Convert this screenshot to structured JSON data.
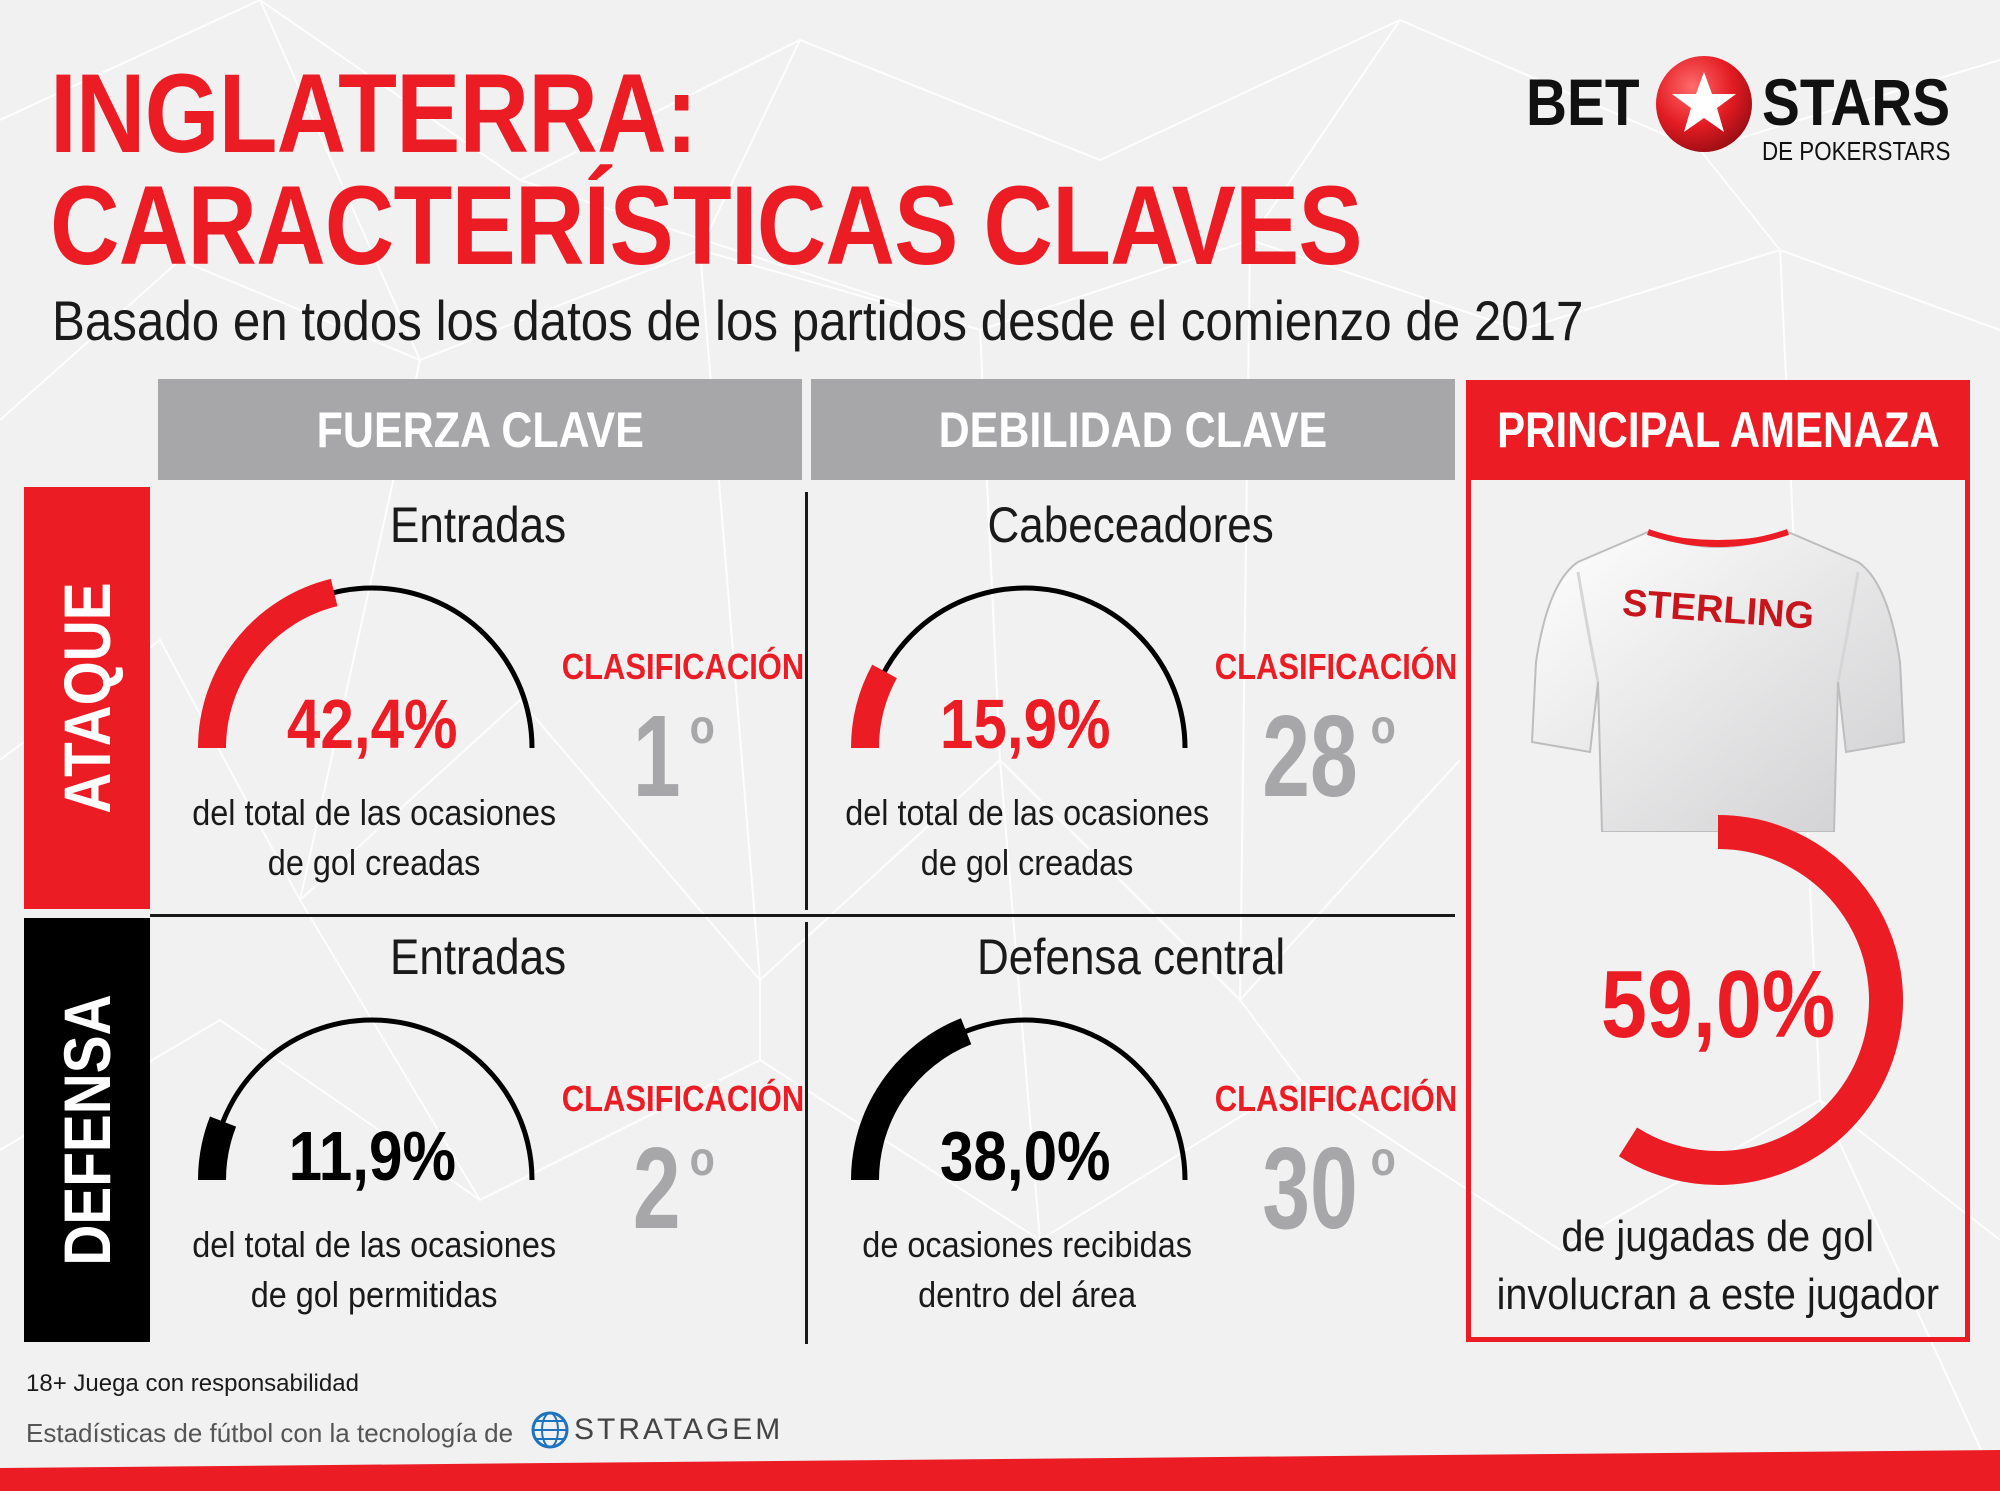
{
  "title": {
    "line1": "INGLATERRA:",
    "line2": "CARACTERÍSTICAS CLAVES"
  },
  "subtitle": "Basado en todos los datos de los partidos desde el comienzo de 2017",
  "logo": {
    "left": "BET",
    "right": "STARS",
    "sub": "DE POKERSTARS"
  },
  "columns": {
    "strength": "FUERZA CLAVE",
    "weakness": "DEBILIDAD CLAVE",
    "threat": "PRINCIPAL AMENAZA"
  },
  "rows": {
    "attack": "ATAQUE",
    "defense": "DEFENSA"
  },
  "cells": {
    "attack_strength": {
      "title": "Entradas",
      "value": 42.4,
      "value_label": "42,4%",
      "desc1": "del total de las ocasiones",
      "desc2": "de gol creadas",
      "rank_label": "CLASIFICACIÓN",
      "rank": "1",
      "rank_suffix": "o"
    },
    "attack_weakness": {
      "title": "Cabeceadores",
      "value": 15.9,
      "value_label": "15,9%",
      "desc1": "del total de las ocasiones",
      "desc2": "de gol creadas",
      "rank_label": "CLASIFICACIÓN",
      "rank": "28",
      "rank_suffix": "o"
    },
    "defense_strength": {
      "title": "Entradas",
      "value": 11.9,
      "value_label": "11,9%",
      "desc1": "del total de las ocasiones",
      "desc2": "de gol permitidas",
      "rank_label": "CLASIFICACIÓN",
      "rank": "2",
      "rank_suffix": "o"
    },
    "defense_weakness": {
      "title": "Defensa central",
      "value": 38.0,
      "value_label": "38,0%",
      "desc1": "de ocasiones recibidas",
      "desc2": "dentro del área",
      "rank_label": "CLASIFICACIÓN",
      "rank": "30",
      "rank_suffix": "o"
    }
  },
  "threat": {
    "player": "STERLING",
    "value": 59.0,
    "value_label": "59,0%",
    "desc1": "de jugadas de gol",
    "desc2": "involucran a este jugador"
  },
  "footer": {
    "responsible": "18+ Juega con responsabilidad",
    "powered": "Estadísticas de fútbol con la tecnología de",
    "brand": "STRATAGEM"
  },
  "colors": {
    "red": "#ec1c24",
    "grey": "#a7a7a9",
    "black": "#000000"
  }
}
